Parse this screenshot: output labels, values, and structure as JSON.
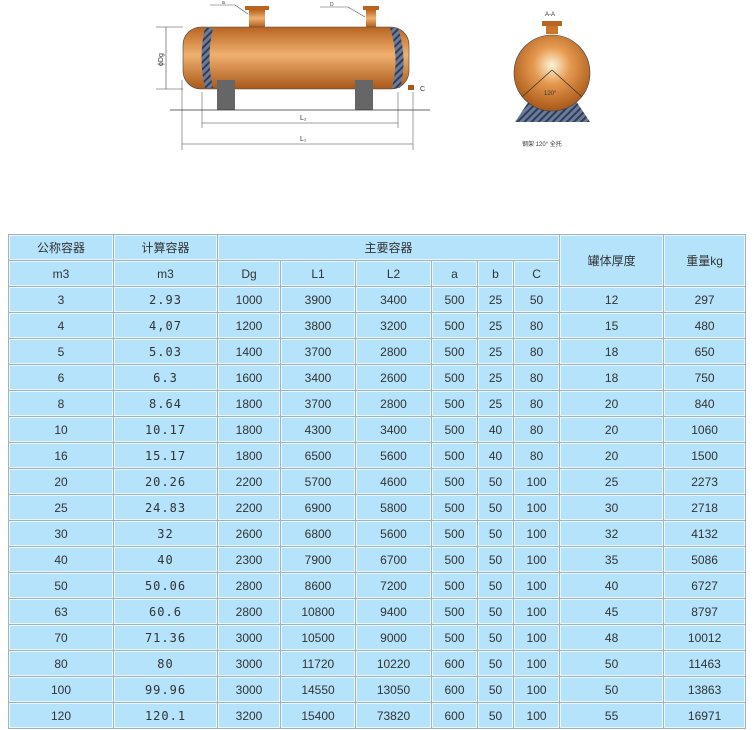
{
  "drawing": {
    "label_a": "a",
    "label_b": "D",
    "label_dg": "ϕDg",
    "label_l2": "L₂",
    "label_l1": "L₁",
    "label_c": "C",
    "section_title": "A-A",
    "angle": "120°",
    "caption": "钢架 120° 全托",
    "colors": {
      "tank": "#c9762c",
      "saddle": "#4a5a78"
    }
  },
  "table": {
    "headers": {
      "nominal": "公称容器",
      "nominal_unit": "m3",
      "calc": "计算容器",
      "calc_unit": "m3",
      "main": "主要容器",
      "dg": "Dg",
      "l1": "L1",
      "l2": "L2",
      "a": "a",
      "b": "b",
      "c": "C",
      "thickness": "罐体厚度",
      "weight": "重量kg"
    },
    "rows": [
      [
        "3",
        "2.93",
        "1000",
        "3900",
        "3400",
        "500",
        "25",
        "50",
        "12",
        "297"
      ],
      [
        "4",
        "4,07",
        "1200",
        "3800",
        "3200",
        "500",
        "25",
        "80",
        "15",
        "480"
      ],
      [
        "5",
        "5.03",
        "1400",
        "3700",
        "2800",
        "500",
        "25",
        "80",
        "18",
        "650"
      ],
      [
        "6",
        "6.3",
        "1600",
        "3400",
        "2600",
        "500",
        "25",
        "80",
        "18",
        "750"
      ],
      [
        "8",
        "8.64",
        "1800",
        "3700",
        "2800",
        "500",
        "25",
        "80",
        "20",
        "840"
      ],
      [
        "10",
        "10.17",
        "1800",
        "4300",
        "3400",
        "500",
        "40",
        "80",
        "20",
        "1060"
      ],
      [
        "16",
        "15.17",
        "1800",
        "6500",
        "5600",
        "500",
        "40",
        "80",
        "20",
        "1500"
      ],
      [
        "20",
        "20.26",
        "2200",
        "5700",
        "4600",
        "500",
        "50",
        "100",
        "25",
        "2273"
      ],
      [
        "25",
        "24.83",
        "2200",
        "6900",
        "5800",
        "500",
        "50",
        "100",
        "30",
        "2718"
      ],
      [
        "30",
        "32",
        "2600",
        "6800",
        "5600",
        "500",
        "50",
        "100",
        "32",
        "4132"
      ],
      [
        "40",
        "40",
        "2300",
        "7900",
        "6700",
        "500",
        "50",
        "100",
        "35",
        "5086"
      ],
      [
        "50",
        "50.06",
        "2800",
        "8600",
        "7200",
        "500",
        "50",
        "100",
        "40",
        "6727"
      ],
      [
        "63",
        "60.6",
        "2800",
        "10800",
        "9400",
        "500",
        "50",
        "100",
        "45",
        "8797"
      ],
      [
        "70",
        "71.36",
        "3000",
        "10500",
        "9000",
        "500",
        "50",
        "100",
        "48",
        "10012"
      ],
      [
        "80",
        "80",
        "3000",
        "11720",
        "10220",
        "600",
        "50",
        "100",
        "50",
        "11463"
      ],
      [
        "100",
        "99.96",
        "3000",
        "14550",
        "13050",
        "600",
        "50",
        "100",
        "50",
        "13863"
      ],
      [
        "120",
        "120.1",
        "3200",
        "15400",
        "73820",
        "600",
        "50",
        "100",
        "55",
        "16971"
      ]
    ]
  }
}
